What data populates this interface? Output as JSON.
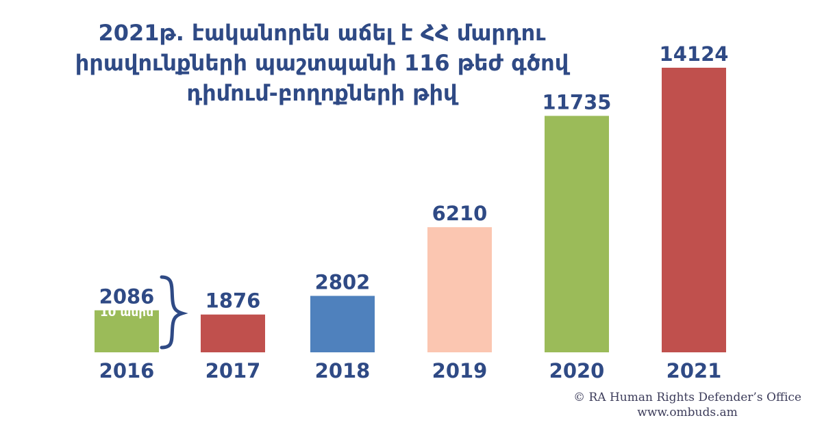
{
  "title_lines": [
    "2021թ. էականորեն աճել է ՀՀ մարդու",
    "իրավունքների պաշտպանի 116 թեժ գծով",
    "դիմում-բողոքների թիվ"
  ],
  "colors": {
    "title": "#2f4a85",
    "labels": "#2f4a85",
    "bars": [
      "#9bbb59",
      "#c0504d",
      "#4f81bd",
      "#fbc6b1",
      "#9bbb59",
      "#c0504d"
    ]
  },
  "chart_data": {
    "type": "bar",
    "categories": [
      "2016",
      "2017",
      "2018",
      "2019",
      "2020",
      "2021"
    ],
    "values": [
      2086,
      1876,
      2802,
      6210,
      11735,
      14124
    ],
    "title": "2021թ. էականորեն աճել է ՀՀ մարդու իրավունքների պաշտպանի 116 թեժ գծով դիմում-բողոքների թիվ",
    "xlabel": "",
    "ylabel": "",
    "ylim": [
      0,
      14124
    ],
    "grid": false,
    "legend": "none",
    "annotations": [
      {
        "category": "2016",
        "text": "10 ամիս"
      }
    ]
  },
  "credit": {
    "line1": "© RA Human Rights Defender’s Office",
    "line2": "www.ombuds.am"
  }
}
